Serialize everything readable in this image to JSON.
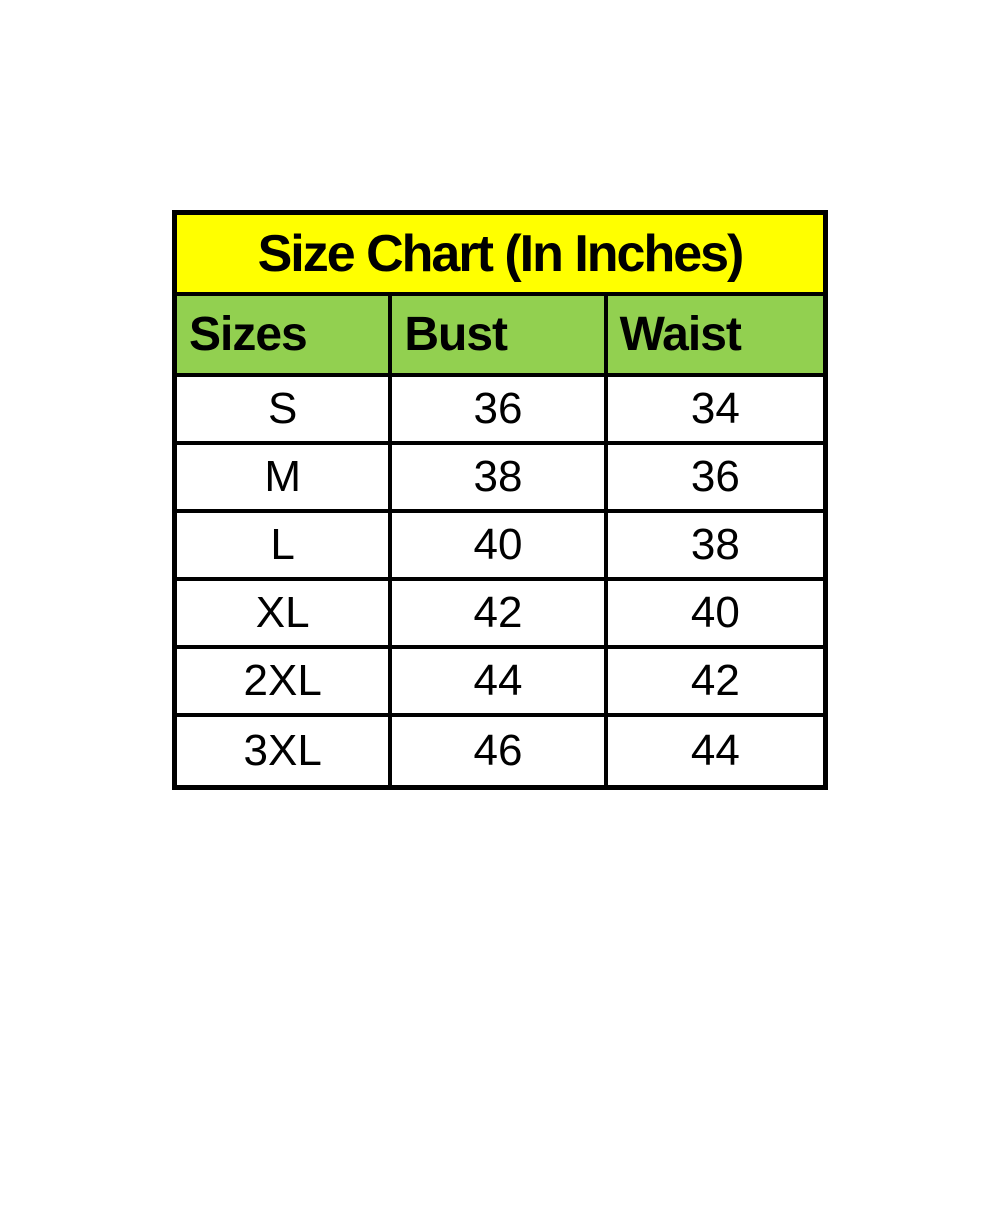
{
  "colors": {
    "page_background": "#ffffff",
    "title_background": "#ffff00",
    "header_background": "#92d050",
    "border": "#000000",
    "text": "#000000"
  },
  "size_chart": {
    "title": "Size Chart (In Inches)",
    "columns": [
      "Sizes",
      "Bust",
      "Waist"
    ],
    "rows": [
      [
        "S",
        "36",
        "34"
      ],
      [
        "M",
        "38",
        "36"
      ],
      [
        "L",
        "40",
        "38"
      ],
      [
        "XL",
        "42",
        "40"
      ],
      [
        "2XL",
        "44",
        "42"
      ],
      [
        "3XL",
        "46",
        "44"
      ]
    ]
  },
  "chart_data": {
    "type": "table",
    "title": "Size Chart (In Inches)",
    "columns": [
      "Sizes",
      "Bust",
      "Waist"
    ],
    "rows": [
      {
        "size": "S",
        "bust": 36,
        "waist": 34
      },
      {
        "size": "M",
        "bust": 38,
        "waist": 36
      },
      {
        "size": "L",
        "bust": 40,
        "waist": 38
      },
      {
        "size": "XL",
        "bust": 42,
        "waist": 40
      },
      {
        "size": "2XL",
        "bust": 44,
        "waist": 42
      },
      {
        "size": "3XL",
        "bust": 46,
        "waist": 44
      }
    ],
    "layout": {
      "title_row_fill": "#ffff00",
      "header_row_fill": "#92d050",
      "body_fill": "#ffffff",
      "grid": true
    }
  }
}
